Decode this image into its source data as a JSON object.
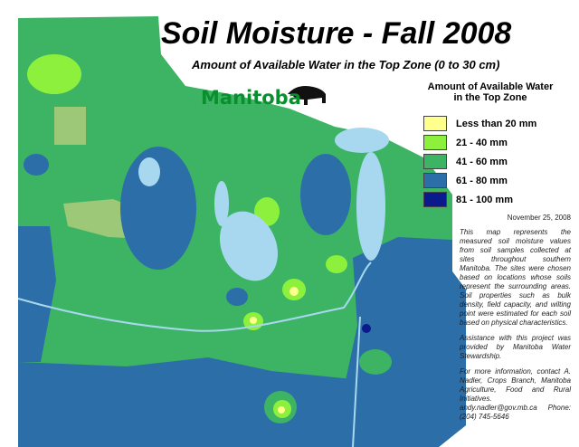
{
  "header": {
    "title": "Soil Moisture - Fall 2008",
    "subtitle": "Amount of Available Water in the Top Zone (0 to 30 cm)",
    "logo": "Manitoba"
  },
  "legend": {
    "title": "Amount of Available Water in the Top Zone",
    "items": [
      {
        "label": "Less than 20 mm",
        "color": "#ffff8c"
      },
      {
        "label": "21 - 40 mm",
        "color": "#8cf03c"
      },
      {
        "label": "41 - 60 mm",
        "color": "#3cb464"
      },
      {
        "label": "61 - 80 mm",
        "color": "#2c6ea8"
      },
      {
        "label": "81 - 100 mm",
        "color": "#0a1a8c"
      }
    ]
  },
  "notes": {
    "date": "November 25, 2008",
    "paragraphs": [
      "This map represents the measured soil moisture values from soil samples collected at sites throughout southern Manitoba. The sites were chosen based on locations whose soils represent the surrounding areas. Soil properties such as bulk density, field capacity, and wilting point were estimated for each soil based on physical characteristics.",
      "Assistance with this project was provided by Manitoba Water Stewardship.",
      "For more information, contact A. Nadler, Crops Branch, Manitoba Agriculture, Food and Rural Initiatives. andy.nadler@gov.mb.ca Phone: (204) 745-5646"
    ]
  }
}
